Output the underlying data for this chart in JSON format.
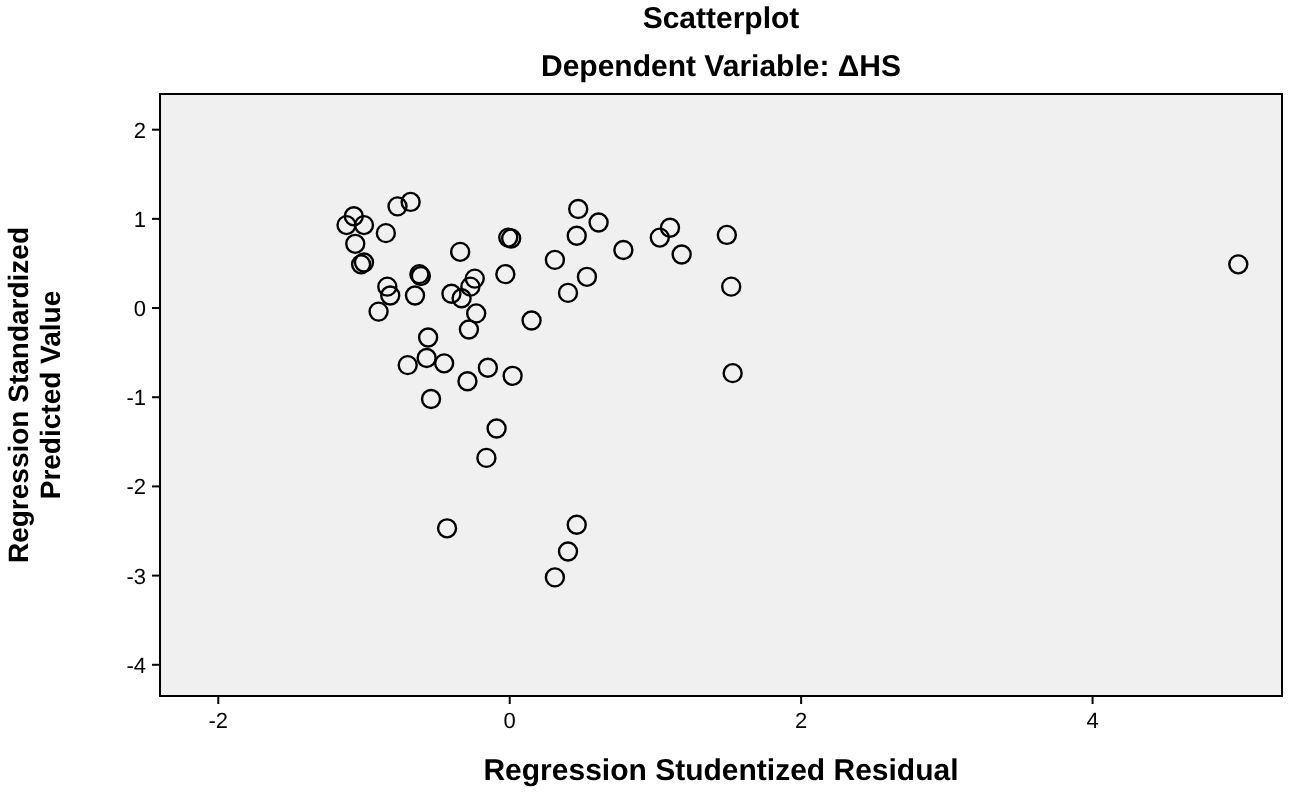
{
  "chart_data": {
    "type": "scatter",
    "title": "Scatterplot",
    "subtitle": "Dependent Variable: ΔHS",
    "xlabel": "Regression Studentized Residual",
    "ylabel": "Regression Standardized Predicted Value",
    "marker": "circle",
    "grid": false,
    "xlim": [
      -2.4,
      5.3
    ],
    "ylim": [
      -4.35,
      2.4
    ],
    "xticks": [
      -2,
      0,
      2,
      4
    ],
    "yticks": [
      -4,
      -3,
      -2,
      -1,
      0,
      1,
      2
    ],
    "series": [
      {
        "color": "#000000",
        "x": [
          -1.07,
          -1.12,
          -1.0,
          -0.77,
          -0.68,
          -0.85,
          -1.06,
          -1.02,
          -1.0,
          -0.84,
          -0.82,
          -0.9,
          -0.62,
          -0.61,
          -0.65,
          -0.34,
          -0.24,
          -0.27,
          -0.4,
          -0.33,
          -0.23,
          -0.28,
          -0.56,
          -0.57,
          -0.7,
          -0.45,
          -0.29,
          -0.15,
          0.02,
          -0.54,
          -0.09,
          -0.16,
          -0.03,
          0.15,
          -0.01,
          0.01,
          0.31,
          0.4,
          0.53,
          0.47,
          0.61,
          0.46,
          0.78,
          1.03,
          1.1,
          1.18,
          1.49,
          1.52,
          1.53,
          -0.43,
          0.46,
          0.4,
          0.31,
          5.0
        ],
        "values": [
          1.03,
          0.93,
          0.93,
          1.14,
          1.19,
          0.84,
          0.72,
          0.49,
          0.51,
          0.24,
          0.14,
          -0.04,
          0.38,
          0.36,
          0.14,
          0.63,
          0.33,
          0.24,
          0.16,
          0.11,
          -0.06,
          -0.24,
          -0.33,
          -0.56,
          -0.64,
          -0.62,
          -0.82,
          -0.67,
          -0.76,
          -1.02,
          -1.35,
          -1.68,
          0.38,
          -0.14,
          0.79,
          0.78,
          0.54,
          0.17,
          0.35,
          1.11,
          0.96,
          0.81,
          0.65,
          0.79,
          0.9,
          0.6,
          0.82,
          0.24,
          -0.73,
          -2.47,
          -2.43,
          -2.73,
          -3.02,
          0.49
        ]
      }
    ]
  }
}
